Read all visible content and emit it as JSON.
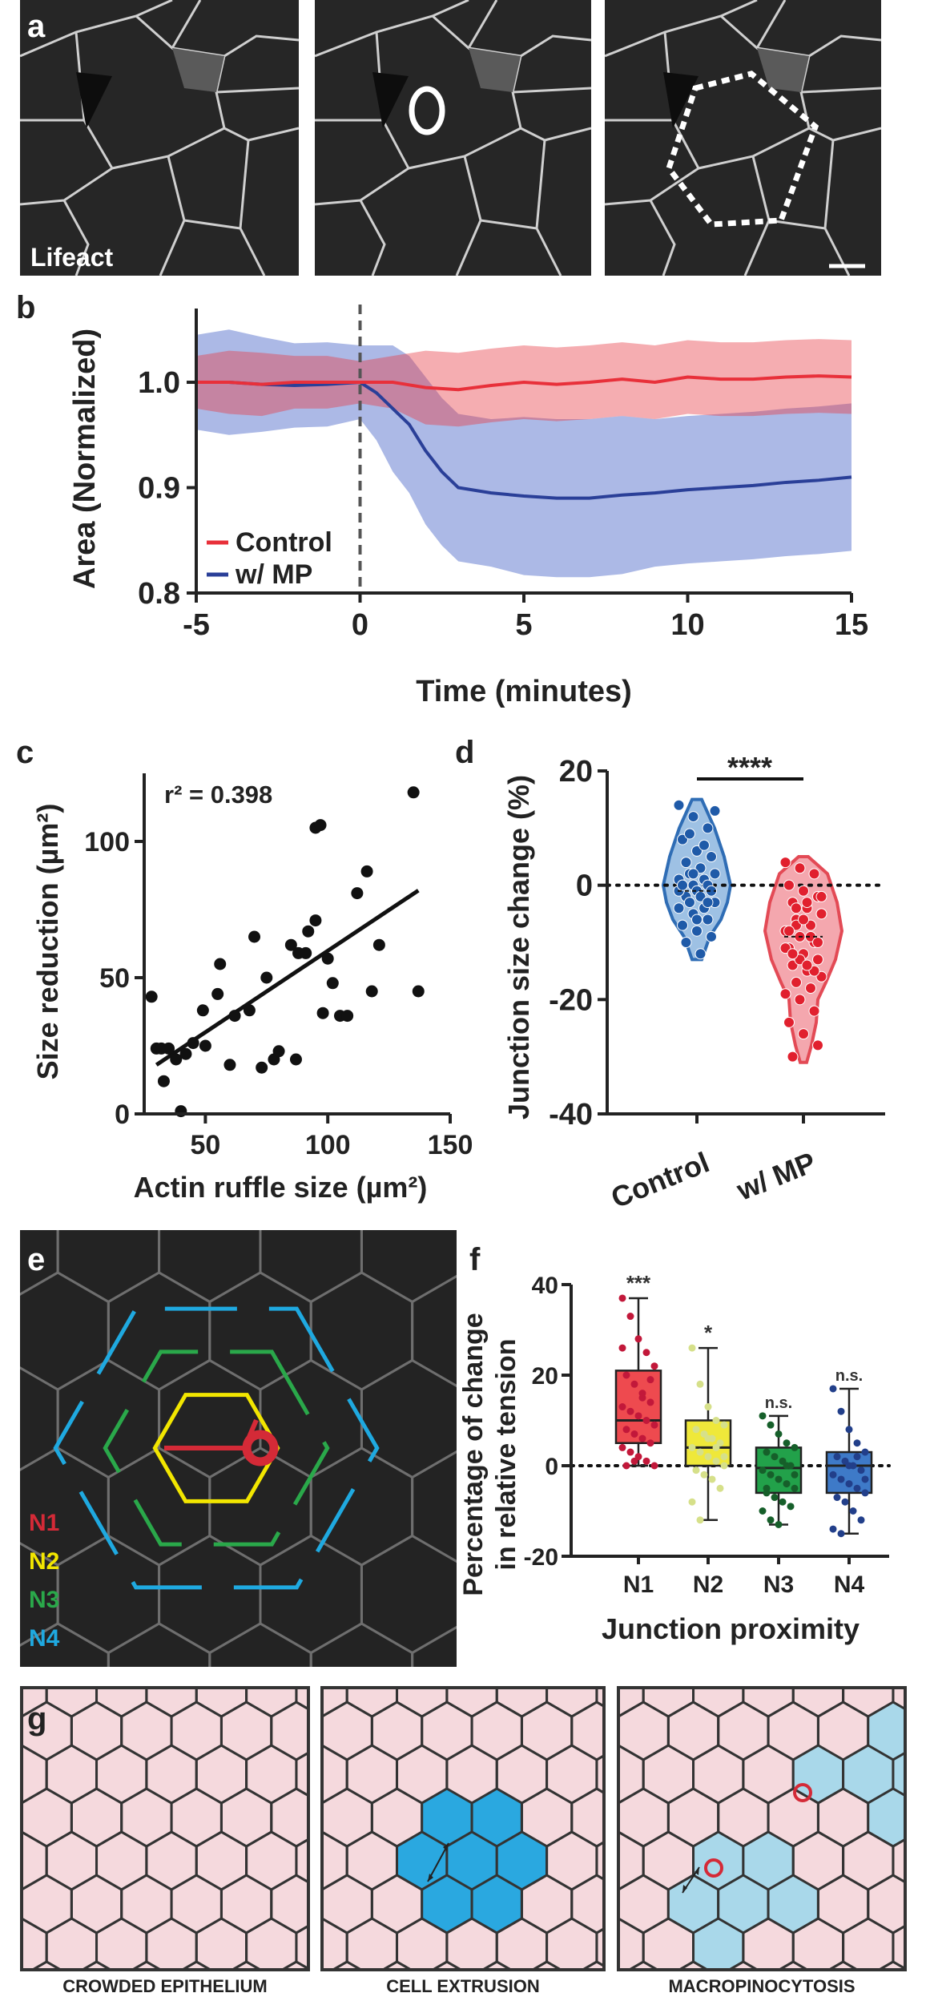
{
  "panels": {
    "a": "a",
    "b": "b",
    "c": "c",
    "d": "d",
    "e": "e",
    "f": "f",
    "g": "g"
  },
  "panel_a": {
    "stain_label": "Lifeact"
  },
  "colors": {
    "control": "#e8303a",
    "mp": "#2a3f98",
    "n1": "#d42a37",
    "n2": "#f2e600",
    "n3": "#2aa84a",
    "n4": "#1fa9e0",
    "pink": "#f5d9dd",
    "extrusion": "#2aa8e0",
    "macro": "#a9d8ea"
  },
  "chart_data": [
    {
      "id": "b",
      "type": "line",
      "xlabel": "Time (minutes)",
      "ylabel": "Area (Normalized)",
      "xlim": [
        -5,
        15
      ],
      "ylim": [
        0.8,
        1.07
      ],
      "xticks": [
        -5,
        0,
        5,
        10,
        15
      ],
      "yticks": [
        0.8,
        0.9,
        1.0
      ],
      "xtick_labels": [
        "-5",
        "0",
        "5",
        "10",
        "15"
      ],
      "ytick_labels": [
        "0.8",
        "0.9",
        "1.0"
      ],
      "legend": [
        "Control",
        "w/ MP"
      ],
      "series": [
        {
          "name": "Control",
          "x": [
            -5,
            -4,
            -3,
            -2,
            -1,
            0,
            1,
            2,
            3,
            4,
            5,
            6,
            7,
            8,
            9,
            10,
            11,
            12,
            13,
            14,
            15
          ],
          "values": [
            1.0,
            1.0,
            0.998,
            1.0,
            1.0,
            1.0,
            1.0,
            0.995,
            0.993,
            0.997,
            1.0,
            0.998,
            1.0,
            1.003,
            1.0,
            1.005,
            1.003,
            1.003,
            1.005,
            1.006,
            1.005
          ],
          "band": [
            0.025,
            0.03,
            0.03,
            0.025,
            0.025,
            0.02,
            0.025,
            0.035,
            0.035,
            0.035,
            0.035,
            0.035,
            0.035,
            0.035,
            0.035,
            0.035,
            0.035,
            0.035,
            0.035,
            0.035,
            0.035
          ]
        },
        {
          "name": "w/ MP",
          "x": [
            -5,
            -4,
            -3,
            -2,
            -1,
            0,
            0.5,
            1,
            1.5,
            2,
            2.5,
            3,
            4,
            5,
            6,
            7,
            8,
            9,
            10,
            11,
            12,
            13,
            14,
            15
          ],
          "values": [
            1.0,
            1.0,
            0.998,
            0.997,
            0.998,
            1.0,
            0.99,
            0.975,
            0.96,
            0.935,
            0.915,
            0.9,
            0.895,
            0.892,
            0.89,
            0.89,
            0.893,
            0.895,
            0.898,
            0.9,
            0.902,
            0.905,
            0.907,
            0.91
          ],
          "band": [
            0.045,
            0.05,
            0.045,
            0.04,
            0.04,
            0.035,
            0.045,
            0.06,
            0.065,
            0.07,
            0.07,
            0.07,
            0.07,
            0.075,
            0.075,
            0.075,
            0.075,
            0.07,
            0.07,
            0.07,
            0.07,
            0.07,
            0.07,
            0.07
          ]
        }
      ]
    },
    {
      "id": "c",
      "type": "scatter",
      "xlabel": "Actin ruffle size (µm²)",
      "ylabel": "Size reduction (µm²)",
      "xlim": [
        25,
        150
      ],
      "ylim": [
        0,
        125
      ],
      "xticks": [
        50,
        100,
        150
      ],
      "yticks": [
        0,
        50,
        100
      ],
      "annotation": "r² = 0.398",
      "fit": {
        "x0": 30,
        "y0": 18,
        "x1": 137,
        "y1": 82
      },
      "x": [
        28,
        30,
        32,
        33,
        35,
        38,
        40,
        42,
        45,
        49,
        50,
        55,
        56,
        60,
        62,
        68,
        70,
        73,
        75,
        78,
        80,
        85,
        87,
        88,
        91,
        92,
        95,
        95,
        97,
        98,
        100,
        102,
        105,
        108,
        112,
        116,
        118,
        121,
        135,
        137
      ],
      "y": [
        43,
        24,
        24,
        12,
        24,
        20,
        1,
        22,
        26,
        38,
        25,
        44,
        55,
        18,
        36,
        38,
        65,
        17,
        50,
        20,
        23,
        62,
        20,
        59,
        59,
        67,
        105,
        71,
        106,
        37,
        57,
        48,
        36,
        36,
        81,
        89,
        45,
        62,
        118,
        45
      ]
    },
    {
      "id": "d",
      "type": "violin",
      "ylabel": "Junction size change (%)",
      "ylim": [
        -40,
        20
      ],
      "yticks": [
        20,
        0,
        -20,
        -40
      ],
      "ytick_labels": [
        "20",
        "0",
        "-20",
        "-40"
      ],
      "categories": [
        "Control",
        "w/ MP"
      ],
      "significance": "****",
      "medians": [
        -1,
        -9
      ],
      "points": [
        [
          14,
          12,
          10,
          8,
          6,
          5,
          4,
          3,
          2,
          2,
          1,
          1,
          0,
          0,
          0,
          -1,
          -1,
          -2,
          -2,
          -3,
          -3,
          -4,
          -4,
          -5,
          -6,
          -7,
          -8,
          -9,
          -10,
          -12,
          13,
          9,
          7,
          -1,
          2,
          -3,
          0,
          -6
        ],
        [
          4,
          3,
          2,
          0,
          -1,
          -2,
          -3,
          -4,
          -5,
          -6,
          -7,
          -8,
          -9,
          -10,
          -11,
          -12,
          -13,
          -14,
          -15,
          -16,
          -17,
          -18,
          -19,
          -20,
          -22,
          -24,
          -26,
          -28,
          -30,
          -3,
          -5,
          -7,
          -9,
          -11,
          -13,
          -15,
          -8,
          -6,
          -10,
          -12,
          -14,
          -2,
          -4
        ]
      ]
    },
    {
      "id": "f",
      "type": "box",
      "xlabel": "Junction proximity",
      "ylabel": "Percentage of change in relative tension",
      "ylabel_lines": [
        "Percentage of change",
        "in relative tension"
      ],
      "ylim": [
        -20,
        40
      ],
      "yticks": [
        -20,
        0,
        20,
        40
      ],
      "ytick_labels": [
        "-20",
        "0",
        "20",
        "40"
      ],
      "categories": [
        "N1",
        "N2",
        "N3",
        "N4"
      ],
      "significance": [
        "***",
        "*",
        "n.s.",
        "n.s."
      ],
      "boxes": [
        {
          "min": 0,
          "q1": 5,
          "median": 10,
          "q3": 21,
          "max": 37
        },
        {
          "min": -12,
          "q1": 0,
          "median": 4,
          "q3": 10,
          "max": 26
        },
        {
          "min": -13,
          "q1": -6,
          "median": -0.5,
          "q3": 4,
          "max": 11
        },
        {
          "min": -15,
          "q1": -6,
          "median": 0,
          "q3": 3,
          "max": 17
        }
      ],
      "points": [
        [
          37,
          33,
          28,
          25,
          22,
          20,
          18,
          16,
          14,
          13,
          12,
          11,
          10,
          9,
          8,
          7,
          6,
          5,
          4,
          3,
          2,
          1,
          0,
          0,
          1,
          15,
          19,
          26
        ],
        [
          26,
          18,
          13,
          10,
          9,
          8,
          7,
          6,
          5,
          4,
          3,
          2,
          1,
          0,
          -1,
          -2,
          -3,
          -5,
          -8,
          -12,
          6,
          4,
          2
        ],
        [
          11,
          9,
          7,
          5,
          4,
          3,
          2,
          1,
          0,
          -1,
          -2,
          -3,
          -4,
          -5,
          -6,
          -7,
          -8,
          -9,
          -10,
          -12,
          -13,
          0,
          -2,
          -5
        ],
        [
          17,
          12,
          8,
          5,
          3,
          2,
          1,
          0,
          -1,
          -2,
          -3,
          -4,
          -5,
          -6,
          -7,
          -8,
          -10,
          -12,
          -14,
          -15,
          0,
          2,
          -3
        ]
      ]
    }
  ],
  "panel_e": {
    "legend": [
      "N1",
      "N2",
      "N3",
      "N4"
    ]
  },
  "panel_g": {
    "titles": [
      "CROWDED EPITHELIUM",
      "CELL EXTRUSION",
      "MACROPINOCYTOSIS"
    ]
  }
}
